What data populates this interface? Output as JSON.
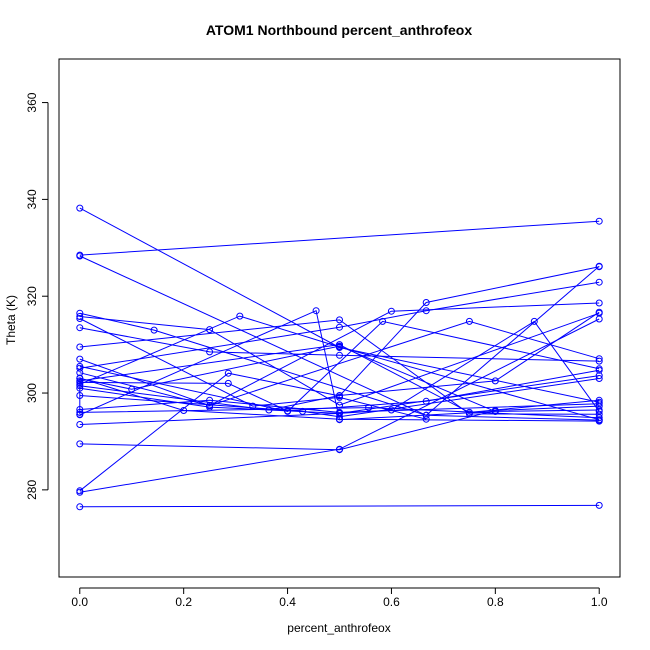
{
  "chart_data": {
    "type": "line",
    "title": "ATOM1 Northbound percent_anthrofeox",
    "xlabel": "percent_anthrofeox",
    "ylabel": "Theta (K)",
    "xlim": [
      -0.04,
      1.04
    ],
    "ylim": [
      262,
      369
    ],
    "xticks": [
      "0.0",
      "0.2",
      "0.4",
      "0.6",
      "0.8",
      "1.0"
    ],
    "yticks": [
      "280",
      "300",
      "320",
      "340",
      "360"
    ],
    "series_color": "#0000ff",
    "grid": false,
    "legend": "none",
    "series": [
      {
        "x": [
          0.0,
          1.0
        ],
        "y": [
          276.5,
          276.8
        ]
      },
      {
        "x": [
          0.0,
          0.5,
          1.0
        ],
        "y": [
          279.5,
          288.4,
          315.3
        ]
      },
      {
        "x": [
          0.0,
          0.5,
          0.8,
          1.0
        ],
        "y": [
          289.5,
          288.3,
          296.4,
          297.3
        ]
      },
      {
        "x": [
          0.0,
          0.0,
          0.2,
          0.5,
          1.0
        ],
        "y": [
          295.6,
          303.1,
          296.4,
          294.6,
          294.2
        ]
      },
      {
        "x": [
          0.0,
          1.0
        ],
        "y": [
          328.5,
          335.5
        ]
      },
      {
        "x": [
          0.0,
          0.667,
          1.0
        ],
        "y": [
          328.3,
          295.4,
          326.2
        ]
      },
      {
        "x": [
          0.0,
          0.5,
          1.0
        ],
        "y": [
          338.2,
          309.4,
          298.1
        ]
      },
      {
        "x": [
          0.0,
          0.143,
          0.667,
          1.0
        ],
        "y": [
          316.5,
          313.0,
          295.4,
          294.4
        ]
      },
      {
        "x": [
          0.0,
          0.25,
          0.5,
          1.0
        ],
        "y": [
          315.8,
          313.1,
          297.5,
          316.5
        ]
      },
      {
        "x": [
          0.0,
          0.333,
          0.5,
          0.667
        ],
        "y": [
          315.4,
          297.3,
          299.1,
          294.6
        ]
      },
      {
        "x": [
          0.0,
          0.25,
          0.5,
          1.0
        ],
        "y": [
          313.5,
          308.5,
          307.8,
          306.6
        ]
      },
      {
        "x": [
          0.0,
          0.5,
          0.75,
          1.0
        ],
        "y": [
          309.5,
          315.1,
          295.7,
          295.6
        ]
      },
      {
        "x": [
          0.0,
          0.25,
          0.6,
          1.0
        ],
        "y": [
          307.0,
          297.4,
          316.9,
          318.6
        ]
      },
      {
        "x": [
          0.0,
          0.5,
          0.667,
          1.0
        ],
        "y": [
          305.1,
          313.6,
          317.0,
          322.9
        ]
      },
      {
        "x": [
          0.0,
          0.25,
          0.75,
          1.0
        ],
        "y": [
          304.2,
          297.4,
          314.8,
          307.1
        ]
      },
      {
        "x": [
          0.0,
          0.1,
          0.5,
          0.8
        ],
        "y": [
          303.0,
          300.8,
          309.7,
          296.2
        ]
      },
      {
        "x": [
          0.0,
          0.286,
          0.4,
          0.667,
          1.0
        ],
        "y": [
          302.2,
          302.0,
          296.3,
          298.3,
          304.7
        ]
      },
      {
        "x": [
          0.0,
          0.364,
          0.5,
          0.8,
          1.0
        ],
        "y": [
          301.5,
          296.5,
          299.5,
          302.5,
          316.7
        ]
      },
      {
        "x": [
          0.0,
          0.25,
          0.5,
          1.0
        ],
        "y": [
          301.0,
          297.1,
          295.8,
          303.6
        ]
      },
      {
        "x": [
          0.0,
          0.429,
          0.5,
          1.0
        ],
        "y": [
          299.5,
          296.2,
          295.1,
          303.0
        ]
      },
      {
        "x": [
          0.0,
          0.556,
          1.0
        ],
        "y": [
          296.0,
          297.0,
          294.9
        ]
      },
      {
        "x": [
          0.0,
          0.455,
          0.5,
          0.8,
          1.0
        ],
        "y": [
          295.5,
          317.0,
          294.5,
          296.2,
          296.5
        ]
      },
      {
        "x": [
          0.0,
          0.5,
          0.6,
          0.875,
          1.0
        ],
        "y": [
          293.5,
          295.8,
          296.5,
          314.8,
          296.2
        ]
      },
      {
        "x": [
          0.0,
          0.286,
          0.5,
          0.667,
          1.0
        ],
        "y": [
          279.8,
          304.1,
          299.4,
          318.7,
          326.1
        ]
      },
      {
        "x": [
          0.0,
          0.25,
          0.5,
          1.0
        ],
        "y": [
          296.6,
          298.5,
          296.0,
          297.8
        ]
      },
      {
        "x": [
          0.0,
          0.308,
          0.5,
          1.0
        ],
        "y": [
          301.8,
          315.9,
          309.5,
          294.5
        ]
      },
      {
        "x": [
          0.0,
          0.4,
          0.583,
          1.0
        ],
        "y": [
          305.5,
          296.2,
          314.8,
          305.0
        ]
      },
      {
        "x": [
          0.0,
          0.5,
          0.75,
          1.0
        ],
        "y": [
          302.5,
          310.0,
          296.0,
          298.5
        ]
      }
    ]
  }
}
